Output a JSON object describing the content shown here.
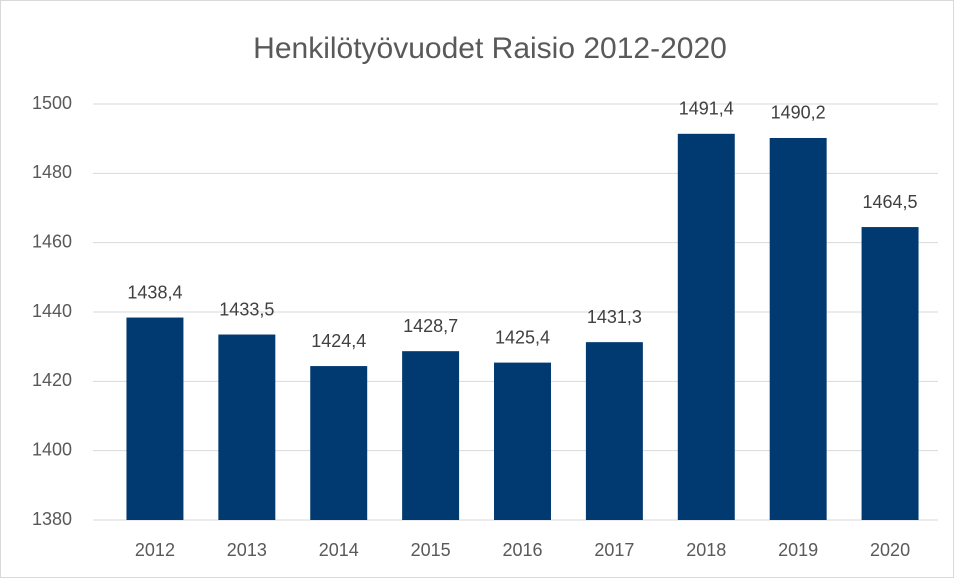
{
  "chart_data": {
    "type": "bar",
    "title": "Henkilötyövuodet Raisio 2012-2020",
    "categories": [
      "2012",
      "2013",
      "2014",
      "2015",
      "2016",
      "2017",
      "2018",
      "2019",
      "2020"
    ],
    "values": [
      1438.4,
      1433.5,
      1424.4,
      1428.7,
      1425.4,
      1431.3,
      1491.4,
      1490.2,
      1464.5
    ],
    "value_labels": [
      "1438,4",
      "1433,5",
      "1424,4",
      "1428,7",
      "1425,4",
      "1431,3",
      "1491,4",
      "1490,2",
      "1464,5"
    ],
    "color": "#003a70",
    "ylim": [
      1380,
      1500
    ],
    "yticks": [
      1380,
      1400,
      1420,
      1440,
      1460,
      1480,
      1500
    ],
    "grid": true
  }
}
